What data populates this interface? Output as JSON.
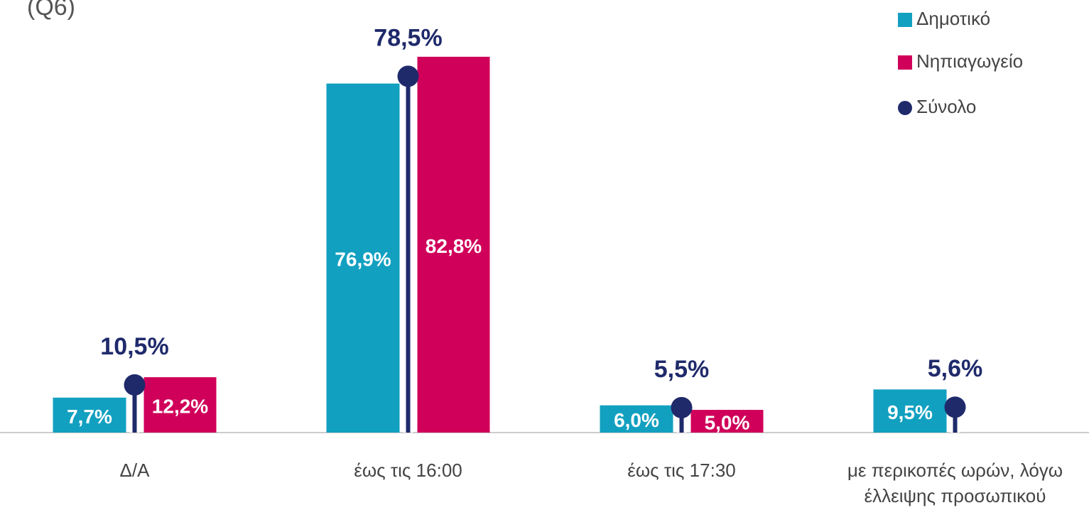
{
  "chart_data": {
    "type": "bar",
    "subtitle": "(Q6)",
    "categories": [
      "Δ/Α",
      "έως τις 16:00",
      "έως τις 17:30",
      "με περικοπές ωρών, λόγω έλλειψης προσωπικού"
    ],
    "series": [
      {
        "name": "Δημοτικό",
        "color": "#12a0c0",
        "type": "bar",
        "values": [
          7.7,
          76.9,
          6.0,
          9.5
        ],
        "value_labels": [
          "7,7%",
          "76,9%",
          "6,0%",
          "9,5%"
        ]
      },
      {
        "name": "Νηπιαγωγείο",
        "color": "#d0005a",
        "type": "bar",
        "values": [
          12.2,
          82.8,
          5.0,
          null
        ],
        "value_labels": [
          "12,2%",
          "82,8%",
          "5,0%",
          null
        ]
      },
      {
        "name": "Σύνολο",
        "color": "#1f2a6b",
        "type": "dot",
        "values": [
          10.5,
          78.5,
          5.5,
          5.6
        ],
        "value_labels": [
          "10,5%",
          "78,5%",
          "5,5%",
          "5,6%"
        ]
      }
    ],
    "legend": "top-right"
  }
}
